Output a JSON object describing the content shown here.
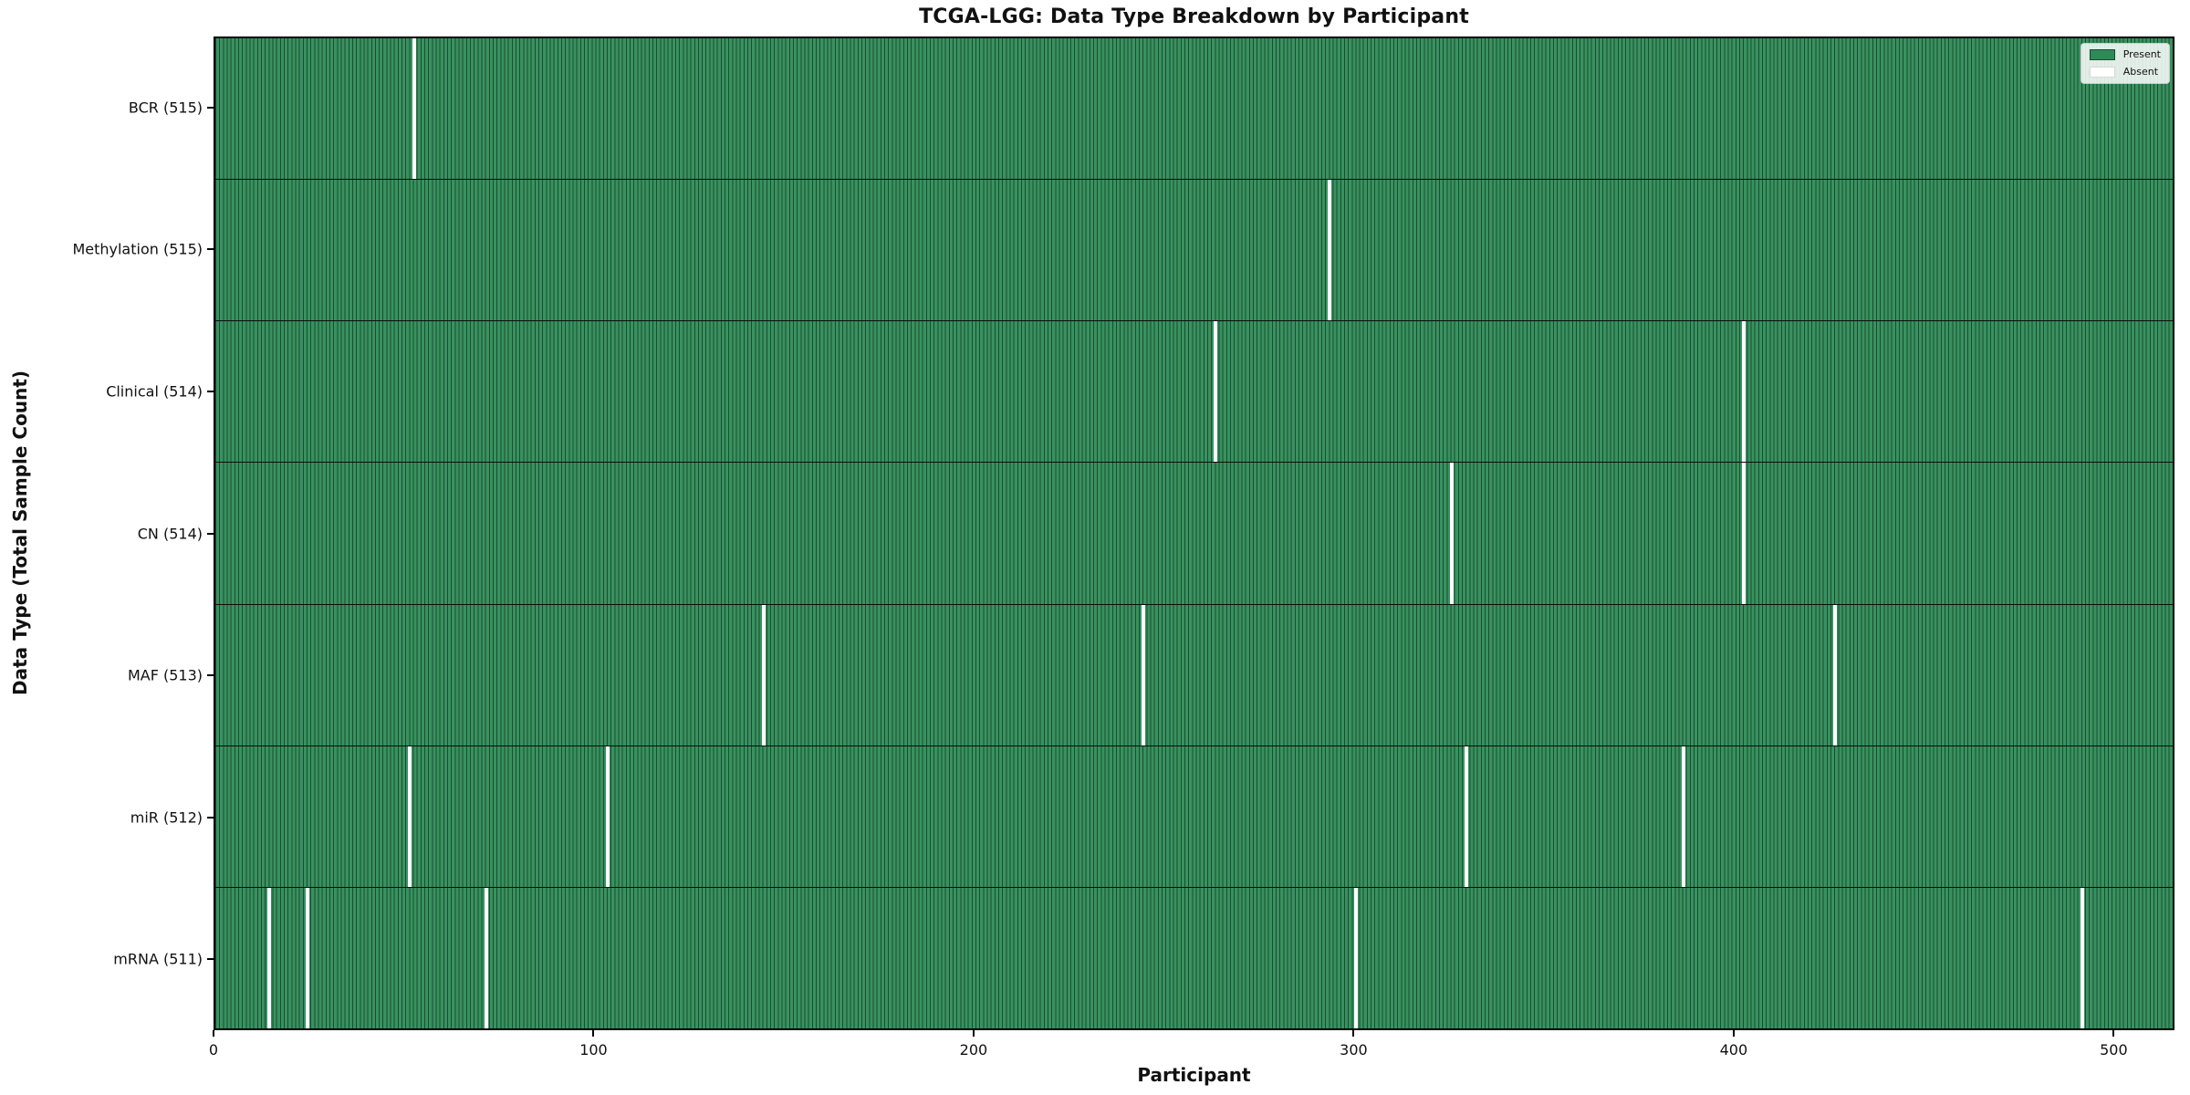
{
  "title": "TCGA-LGG: Data Type Breakdown by Participant",
  "xlabel": "Participant",
  "ylabel": "Data Type (Total Sample Count)",
  "legend": {
    "present_label": "Present",
    "absent_label": "Absent"
  },
  "colors": {
    "present_fill": "#38925f",
    "bar_edge": "#1b4c32",
    "absent": "#ffffff",
    "legend_present_swatch": "#2e8b57",
    "spine": "#000000"
  },
  "chart_data": {
    "type": "heatmap",
    "title": "TCGA-LGG: Data Type Breakdown by Participant",
    "xlabel": "Participant",
    "ylabel": "Data Type (Total Sample Count)",
    "legend_entries": [
      "Present",
      "Absent"
    ],
    "legend_position": "upper right",
    "x_ticks": [
      0,
      100,
      200,
      300,
      400,
      500
    ],
    "x_range": [
      0,
      516
    ],
    "total_participants": 516,
    "grid": false,
    "rows": [
      {
        "data_type": "BCR",
        "label": "BCR (515)",
        "present_count": 515,
        "absent_participants": [
          52
        ]
      },
      {
        "data_type": "Methylation",
        "label": "Methylation (515)",
        "present_count": 515,
        "absent_participants": [
          293
        ]
      },
      {
        "data_type": "Clinical",
        "label": "Clinical (514)",
        "present_count": 514,
        "absent_participants": [
          263,
          402
        ]
      },
      {
        "data_type": "CN",
        "label": "CN (514)",
        "present_count": 514,
        "absent_participants": [
          325,
          402
        ]
      },
      {
        "data_type": "MAF",
        "label": "MAF (513)",
        "present_count": 513,
        "absent_participants": [
          144,
          244,
          426
        ]
      },
      {
        "data_type": "miR",
        "label": "miR (512)",
        "present_count": 512,
        "absent_participants": [
          51,
          103,
          329,
          386
        ]
      },
      {
        "data_type": "mRNA",
        "label": "mRNA (511)",
        "present_count": 511,
        "absent_participants": [
          14,
          24,
          71,
          300,
          491
        ]
      }
    ]
  }
}
